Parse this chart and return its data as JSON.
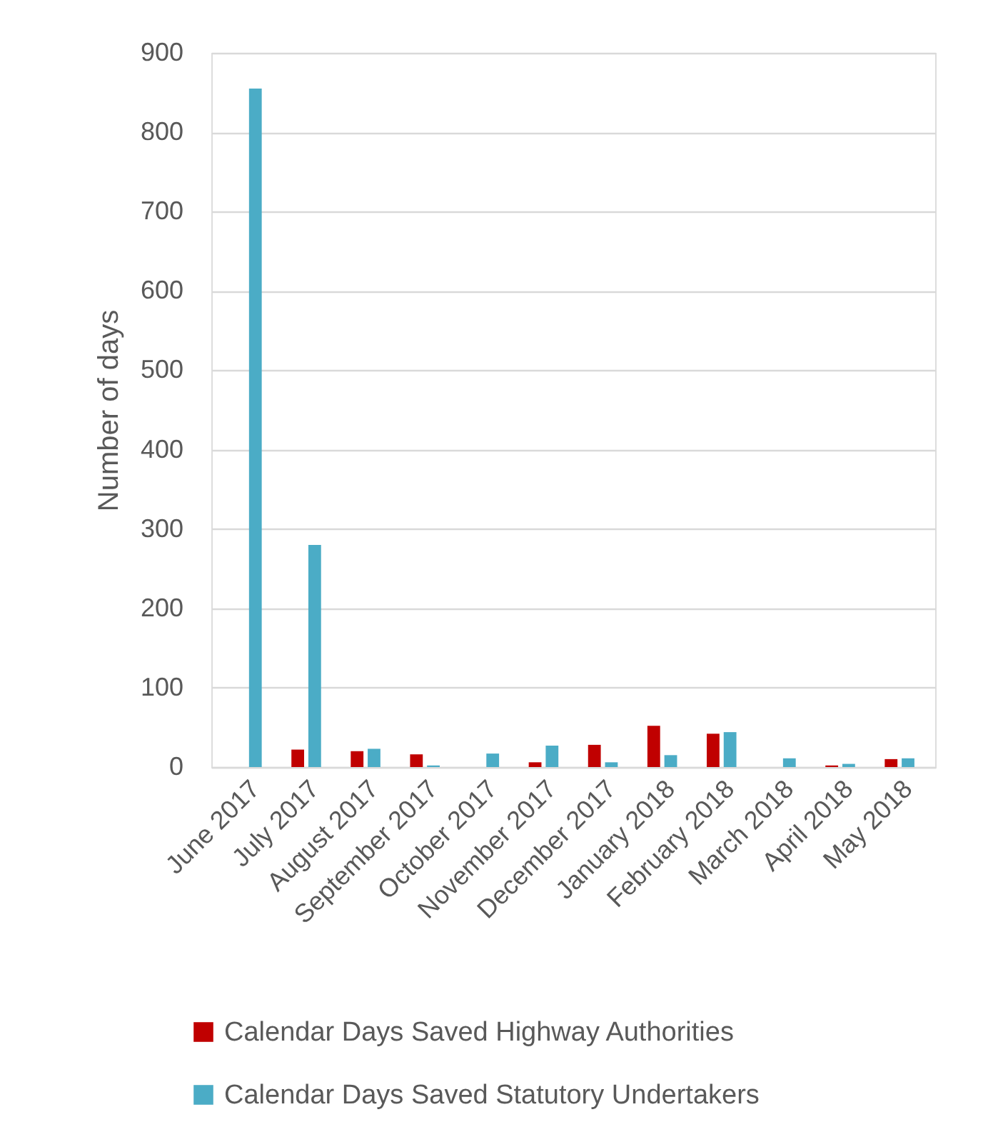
{
  "chart_data": {
    "type": "bar",
    "categories": [
      "June 2017",
      "July 2017",
      "August 2017",
      "September 2017",
      "October 2017",
      "November 2017",
      "December 2017",
      "January 2018",
      "February 2018",
      "March 2018",
      "April 2018",
      "May 2018"
    ],
    "series": [
      {
        "name": "Calendar Days Saved Highway Authorities",
        "color": "#c00000",
        "values": [
          null,
          22,
          20,
          16,
          null,
          6,
          28,
          52,
          42,
          null,
          2,
          10
        ]
      },
      {
        "name": "Calendar Days Saved Statutory Undertakers",
        "color": "#4bacc6",
        "values": [
          855,
          280,
          23,
          2,
          17,
          27,
          6,
          15,
          44,
          11,
          4,
          11
        ]
      }
    ],
    "ylabel": "Number of days",
    "ylim": [
      0,
      900
    ],
    "yticks": [
      0,
      100,
      200,
      300,
      400,
      500,
      600,
      700,
      800,
      900
    ],
    "grid": "y",
    "legend": "bottom"
  }
}
